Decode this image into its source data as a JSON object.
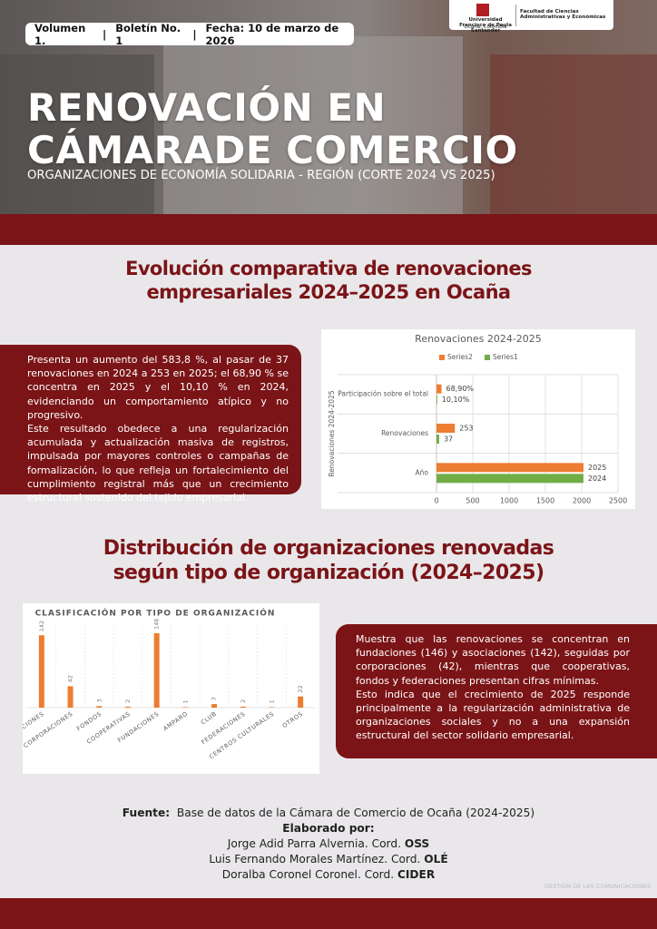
{
  "header": {
    "volume": "Volumen 1.",
    "bulletin": "Boletín No. 1",
    "date": "Fecha: 10 de marzo de 2026",
    "university": "Universidad Francisco de Paula Santander",
    "city": "Ocaña, Colombia",
    "faculty": "Facultad de Ciencias Administrativas y Económicas",
    "title_lines": [
      "RENOVACIÓN EN",
      "CÁMARADE COMERCIO"
    ],
    "subtitle": "ORGANIZACIONES DE ECONOMÍA SOLIDARIA - REGIÓN (CORTE 2024 VS 2025)"
  },
  "section1": {
    "title_lines": [
      "Evolución comparativa de renovaciones",
      "empresariales 2024–2025 en Ocaña"
    ],
    "paragraphs": [
      "Presenta un aumento del 583,8 %, al pasar de 37 renovaciones en 2024 a 253 en 2025; el 68,90 % se concentra en 2025 y el 10,10 % en 2024, evidenciando un comportamiento atípico y no progresivo.",
      "Este resultado obedece a una regularización acumulada y actualización masiva de registros, impulsada por mayores controles o campañas de formalización, lo que refleja un fortalecimiento del cumplimiento registral más que un crecimiento estructural sostenido del tejido empresarial."
    ]
  },
  "chart_data": [
    {
      "type": "hbar",
      "title": "Renovaciones 2024-2025",
      "y_label": "Renovaciones 2024-2025",
      "categories": [
        "Participación sobre el total",
        "Renovaciones",
        "Año"
      ],
      "series": [
        {
          "name": "Series2",
          "color": "#ed7d31",
          "values": [
            68.9,
            253,
            2025
          ],
          "value_labels": [
            "68,90%",
            "253",
            "2025"
          ]
        },
        {
          "name": "Series1",
          "color": "#70ad47",
          "values": [
            10.1,
            37,
            2024
          ],
          "value_labels": [
            "10,10%",
            "37",
            "2024"
          ]
        }
      ],
      "xlim": [
        0,
        2500
      ],
      "xticks": [
        0,
        500,
        1000,
        1500,
        2000,
        2500
      ],
      "grid": true
    },
    {
      "type": "bar",
      "title": "CLASIFICACIÓN POR TIPO DE ORGANIZACIÓN",
      "categories": [
        "ASOCIACIONES",
        "CORPORACIONES",
        "FONDOS",
        "COOPERATIVAS",
        "FUNDACIONES",
        "AMPARO",
        "CLUB",
        "FEDERACIONES",
        "CENTROS CULTURALES",
        "OTROS"
      ],
      "values": [
        142,
        42,
        3,
        2,
        146,
        1,
        7,
        2,
        1,
        22
      ],
      "color": "#ed7d31"
    }
  ],
  "section2": {
    "title_lines": [
      "Distribución de organizaciones renovadas",
      "según tipo de organización (2024–2025)"
    ],
    "paragraphs": [
      "Muestra que las renovaciones se concentran en fundaciones (146) y asociaciones (142), seguidas por corporaciones (42), mientras que cooperativas, fondos y federaciones presentan cifras mínimas.",
      "Esto indica que el crecimiento de 2025 responde principalmente a la regularización administrativa de organizaciones sociales y no a una expansión estructural del sector solidario empresarial."
    ]
  },
  "footer": {
    "source_label": "Fuente:",
    "source": "Base de datos de la Cámara de Comercio de Ocaña (2024-2025)",
    "credits_label": "Elaborado por:",
    "credits": [
      {
        "name": "Jorge Adid Parra Alvernia. Cord.",
        "group": "OSS"
      },
      {
        "name": "Luis Fernando Morales Martínez. Cord.",
        "group": "OLÉ"
      },
      {
        "name": "Doralba Coronel Coronel. Cord.",
        "group": "CIDER"
      }
    ],
    "watermark": "GESTIÓN DE LAS COMUNICACIONES"
  }
}
